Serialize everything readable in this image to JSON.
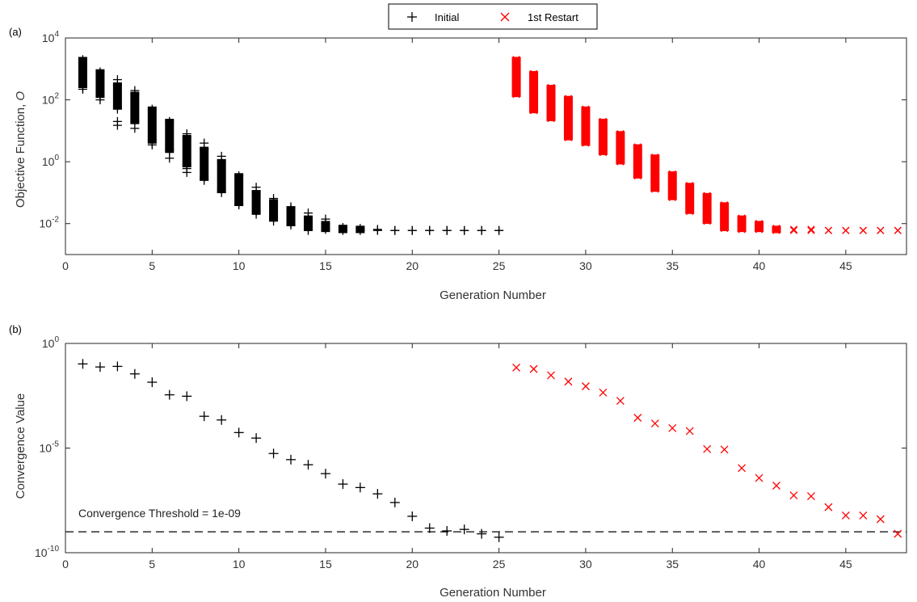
{
  "legend": {
    "entries": [
      {
        "label": "Initial",
        "marker": "plus",
        "color": "#000000"
      },
      {
        "label": "1st Restart",
        "marker": "x",
        "color": "#ff0000"
      }
    ],
    "placement": "top-center"
  },
  "chart_data": [
    {
      "type": "scatter",
      "panel_label": "(a)",
      "xlabel": "Generation Number",
      "ylabel": "Objective Function, ",
      "ylabel_italic": "O",
      "xlim": [
        0,
        48.5
      ],
      "ylim": [
        0.001,
        10000.0
      ],
      "yscale": "log",
      "xticks": [
        0,
        5,
        10,
        15,
        20,
        25,
        30,
        35,
        40,
        45
      ],
      "yticks": [
        {
          "value": 0.01,
          "base": "10",
          "exp": "-2"
        },
        {
          "value": 1,
          "base": "10",
          "exp": "0"
        },
        {
          "value": 100,
          "base": "10",
          "exp": "2"
        },
        {
          "value": 10000,
          "base": "10",
          "exp": "4"
        }
      ],
      "grid": false,
      "series": [
        {
          "name": "Initial",
          "marker": "plus",
          "color": "#000000",
          "bands": [
            {
              "x": 1,
              "min": 300,
              "max": 2000,
              "low": [
                250,
                220
              ]
            },
            {
              "x": 2,
              "min": 150,
              "max": 800,
              "low": [
                120,
                100
              ]
            },
            {
              "x": 3,
              "min": 60,
              "max": 300,
              "low": [
                50,
                20,
                15
              ],
              "high": [
                450
              ]
            },
            {
              "x": 4,
              "min": 20,
              "max": 150,
              "low": [
                12
              ],
              "high": [
                200
              ]
            },
            {
              "x": 5,
              "min": 5,
              "max": 50,
              "low": [
                4,
                3.5
              ]
            },
            {
              "x": 6,
              "min": 2.5,
              "max": 20,
              "low": [
                2,
                1.3
              ]
            },
            {
              "x": 7,
              "min": 0.8,
              "max": 6,
              "low": [
                0.6,
                0.45
              ],
              "high": [
                8
              ]
            },
            {
              "x": 8,
              "min": 0.3,
              "max": 2.5,
              "low": [
                0.25
              ],
              "high": [
                4
              ]
            },
            {
              "x": 9,
              "min": 0.12,
              "max": 1,
              "low": [
                0.1
              ],
              "high": [
                1.5
              ]
            },
            {
              "x": 10,
              "min": 0.045,
              "max": 0.35,
              "low": [
                0.04
              ]
            },
            {
              "x": 11,
              "min": 0.025,
              "max": 0.1,
              "low": [
                0.02
              ],
              "high": [
                0.15
              ]
            },
            {
              "x": 12,
              "min": 0.015,
              "max": 0.05,
              "low": [
                0.012
              ],
              "high": [
                0.065
              ]
            },
            {
              "x": 13,
              "min": 0.01,
              "max": 0.03,
              "low": [
                0.009
              ],
              "high": [
                0.035
              ]
            },
            {
              "x": 14,
              "min": 0.007,
              "max": 0.015,
              "low": [
                0.006
              ],
              "high": [
                0.022
              ]
            },
            {
              "x": 15,
              "min": 0.0065,
              "max": 0.01,
              "high": [
                0.014
              ]
            },
            {
              "x": 16,
              "min": 0.006,
              "max": 0.0075
            },
            {
              "x": 17,
              "min": 0.006,
              "max": 0.007
            },
            {
              "x": 18,
              "min": 0.006,
              "max": 0.0065
            },
            {
              "x": 19,
              "min": 0.006,
              "max": 0.006
            },
            {
              "x": 20,
              "min": 0.006,
              "max": 0.006
            },
            {
              "x": 21,
              "min": 0.006,
              "max": 0.006
            },
            {
              "x": 22,
              "min": 0.006,
              "max": 0.006
            },
            {
              "x": 23,
              "min": 0.006,
              "max": 0.006
            },
            {
              "x": 24,
              "min": 0.006,
              "max": 0.006
            },
            {
              "x": 25,
              "min": 0.006,
              "max": 0.006
            }
          ]
        },
        {
          "name": "1st Restart",
          "marker": "x",
          "color": "#ff0000",
          "bands": [
            {
              "x": 26,
              "min": 150,
              "max": 2000
            },
            {
              "x": 27,
              "min": 45,
              "max": 700
            },
            {
              "x": 28,
              "min": 25,
              "max": 250
            },
            {
              "x": 29,
              "min": 6,
              "max": 110
            },
            {
              "x": 30,
              "min": 4,
              "max": 50
            },
            {
              "x": 31,
              "min": 2,
              "max": 20
            },
            {
              "x": 32,
              "min": 1,
              "max": 8
            },
            {
              "x": 33,
              "min": 0.35,
              "max": 3
            },
            {
              "x": 34,
              "min": 0.13,
              "max": 1.4
            },
            {
              "x": 35,
              "min": 0.07,
              "max": 0.4
            },
            {
              "x": 36,
              "min": 0.025,
              "max": 0.17
            },
            {
              "x": 37,
              "min": 0.012,
              "max": 0.08
            },
            {
              "x": 38,
              "min": 0.007,
              "max": 0.04
            },
            {
              "x": 39,
              "min": 0.0065,
              "max": 0.015
            },
            {
              "x": 40,
              "min": 0.0065,
              "max": 0.01
            },
            {
              "x": 41,
              "min": 0.006,
              "max": 0.007
            },
            {
              "x": 42,
              "min": 0.006,
              "max": 0.0065
            },
            {
              "x": 43,
              "min": 0.006,
              "max": 0.0065
            },
            {
              "x": 44,
              "min": 0.006,
              "max": 0.006
            },
            {
              "x": 45,
              "min": 0.006,
              "max": 0.006
            },
            {
              "x": 46,
              "min": 0.006,
              "max": 0.006
            },
            {
              "x": 47,
              "min": 0.006,
              "max": 0.006
            },
            {
              "x": 48,
              "min": 0.006,
              "max": 0.006
            }
          ]
        }
      ]
    },
    {
      "type": "scatter",
      "panel_label": "(b)",
      "xlabel": "Generation Number",
      "ylabel": "Convergence Value",
      "xlim": [
        0,
        48.5
      ],
      "ylim": [
        1e-10,
        1
      ],
      "yscale": "log",
      "xticks": [
        0,
        5,
        10,
        15,
        20,
        25,
        30,
        35,
        40,
        45
      ],
      "yticks": [
        {
          "value": 1e-10,
          "base": "10",
          "exp": "-10"
        },
        {
          "value": 1e-05,
          "base": "10",
          "exp": "-5"
        },
        {
          "value": 1,
          "base": "10",
          "exp": "0"
        }
      ],
      "grid": false,
      "threshold": {
        "value": 1e-09,
        "label": "Convergence Threshold = 1e-09",
        "style": "dashed"
      },
      "series": [
        {
          "name": "Initial",
          "marker": "plus",
          "color": "#000000",
          "x": [
            1,
            2,
            3,
            4,
            5,
            6,
            7,
            8,
            9,
            10,
            11,
            12,
            13,
            14,
            15,
            16,
            17,
            18,
            19,
            20,
            21,
            22,
            23,
            24,
            25
          ],
          "y": [
            0.105,
            0.075,
            0.08,
            0.035,
            0.014,
            0.0035,
            0.003,
            0.00033,
            0.00022,
            5.5e-05,
            3e-05,
            5.5e-06,
            2.8e-06,
            1.6e-06,
            6e-07,
            1.9e-07,
            1.3e-07,
            6.5e-08,
            2.5e-08,
            5.5e-09,
            1.5e-09,
            1.1e-09,
            1.3e-09,
            8e-10,
            5.5e-10
          ]
        },
        {
          "name": "1st Restart",
          "marker": "x",
          "color": "#ff0000",
          "x": [
            26,
            27,
            28,
            29,
            30,
            31,
            32,
            33,
            34,
            35,
            36,
            37,
            38,
            39,
            40,
            41,
            42,
            43,
            44,
            45,
            46,
            47,
            48
          ],
          "y": [
            0.07,
            0.06,
            0.03,
            0.015,
            0.009,
            0.0045,
            0.0018,
            0.00028,
            0.00015,
            9e-05,
            6.5e-05,
            9e-06,
            8.5e-06,
            1.1e-06,
            3.7e-07,
            1.6e-07,
            5.5e-08,
            5e-08,
            1.5e-08,
            6e-09,
            6e-09,
            4e-09,
            8e-10
          ]
        }
      ]
    }
  ]
}
